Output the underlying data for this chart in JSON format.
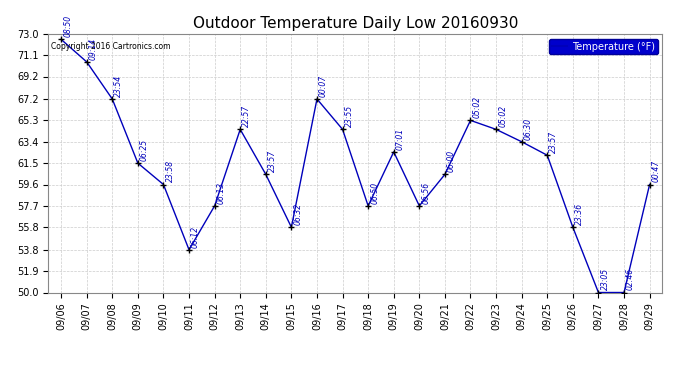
{
  "title": "Outdoor Temperature Daily Low 20160930",
  "copyright": "Copyright 2016 Cartronics.com",
  "legend_label": "Temperature (°F)",
  "x_labels": [
    "09/06",
    "09/07",
    "09/08",
    "09/09",
    "09/10",
    "09/11",
    "09/12",
    "09/13",
    "09/14",
    "09/15",
    "09/16",
    "09/17",
    "09/18",
    "09/19",
    "09/20",
    "09/21",
    "09/22",
    "09/23",
    "09/24",
    "09/25",
    "09/26",
    "09/27",
    "09/28",
    "09/29"
  ],
  "x_data": [
    0,
    1,
    2,
    3,
    4,
    5,
    6,
    7,
    8,
    9,
    10,
    11,
    12,
    13,
    14,
    15,
    16,
    17,
    18,
    19,
    20,
    21,
    22,
    23
  ],
  "y_data": [
    72.5,
    70.5,
    67.2,
    61.5,
    59.6,
    53.8,
    57.7,
    64.5,
    60.5,
    55.8,
    67.2,
    64.5,
    57.7,
    62.5,
    57.7,
    60.5,
    65.3,
    64.5,
    63.4,
    62.2,
    55.8,
    50.0,
    50.0,
    59.6
  ],
  "time_labels": [
    "08:50",
    "09:14",
    "23:54",
    "06:25",
    "23:58",
    "06:12",
    "06:13",
    "22:57",
    "23:57",
    "06:32",
    "00:07",
    "23:55",
    "06:50",
    "07:01",
    "06:56",
    "06:00",
    "05:02",
    "05:02",
    "06:30",
    "23:57",
    "23:36",
    "23:05",
    "02:46",
    "00:47"
  ],
  "line_color": "#0000bb",
  "marker_color": "#000000",
  "label_color": "#0000bb",
  "bg_color": "#ffffff",
  "grid_color": "#cccccc",
  "legend_bg": "#0000cc",
  "legend_text_color": "#ffffff",
  "yticks": [
    50.0,
    51.9,
    53.8,
    55.8,
    57.7,
    59.6,
    61.5,
    63.4,
    65.3,
    67.2,
    69.2,
    71.1,
    73.0
  ],
  "ylim": [
    50.0,
    73.0
  ],
  "xlim": [
    -0.5,
    23.5
  ],
  "title_fontsize": 11,
  "tick_fontsize": 7,
  "label_fontsize": 5.5,
  "copyright_fontsize": 5.5
}
